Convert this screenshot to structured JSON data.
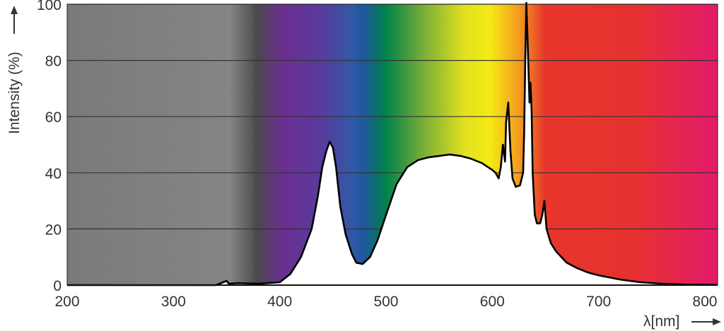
{
  "chart_data": {
    "type": "area",
    "xlabel": "λ[nm]",
    "ylabel": "Intensity (%)",
    "xlim": [
      200,
      812
    ],
    "ylim": [
      0,
      100
    ],
    "xticks": [
      200,
      300,
      400,
      500,
      600,
      700,
      800
    ],
    "yticks": [
      0,
      20,
      40,
      60,
      80,
      100
    ],
    "grid": "horizontal",
    "background": "spectral color gradient (ultraviolet gray to visible spectrum)",
    "colors": {
      "curve": "#000000",
      "area_fill": "#ffffff",
      "gridline": "#333333",
      "uv_gray": "#7a7a7a",
      "violet": "#6a2f8f",
      "blue": "#2f5aa6",
      "green": "#00834a",
      "yellow": "#f5ea15",
      "orange": "#f39a1f",
      "red": "#e8352c",
      "magenta": "#e41a6b"
    },
    "series": [
      {
        "x": [
          200,
          300,
          340,
          350,
          352,
          360,
          380,
          400,
          410,
          420,
          430,
          436,
          440,
          444,
          447,
          450,
          453,
          457,
          462,
          468,
          472,
          478,
          485,
          492,
          500,
          510,
          520,
          530,
          540,
          550,
          560,
          570,
          580,
          590,
          600,
          603,
          606,
          608,
          610,
          612,
          613,
          615,
          617,
          619,
          622,
          626,
          629,
          630,
          631,
          632,
          633,
          635,
          636,
          637,
          638,
          640,
          642,
          645,
          647,
          649,
          651,
          655,
          660,
          670,
          680,
          690,
          700,
          720,
          740,
          760,
          780,
          800,
          812
        ],
        "y": [
          0,
          0,
          0,
          1.5,
          0.5,
          0.7,
          0.5,
          1,
          4,
          10,
          20,
          32,
          42,
          48,
          51,
          49,
          42,
          28,
          18,
          11,
          8,
          7.5,
          10,
          16,
          25,
          36,
          42,
          44.5,
          45.5,
          46,
          46.5,
          46,
          45,
          43.5,
          41,
          40,
          38,
          42,
          50,
          44,
          58,
          65,
          48,
          38,
          35,
          35.5,
          40,
          55,
          80,
          101,
          90,
          65,
          72,
          62,
          40,
          25,
          22,
          22,
          25,
          30,
          20,
          15,
          12,
          8,
          6,
          4.5,
          3.5,
          2,
          1,
          0.5,
          0.2,
          0.1,
          0.1
        ]
      }
    ]
  }
}
